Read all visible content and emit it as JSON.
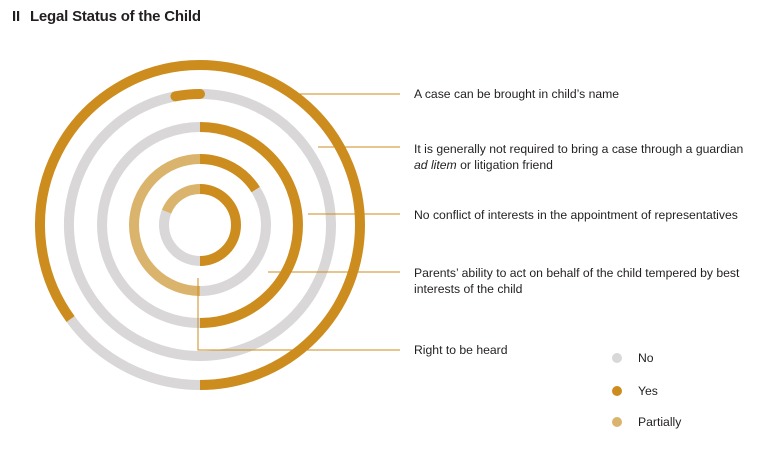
{
  "header": {
    "section_number": "II",
    "title": "Legal Status of the Child"
  },
  "colors": {
    "no": "#d9d7d8",
    "yes": "#cc8d1e",
    "partially": "#dab46c",
    "leader": "#cc8d1e"
  },
  "chart_data": {
    "type": "radial_bar",
    "title": "Legal Status of the Child",
    "legend": {
      "placement": "bottom-right",
      "entries": [
        "No",
        "Yes",
        "Partially"
      ]
    },
    "categories": [
      "A case can be brought in child's name",
      "It is generally not required to bring a case through a guardian ad litem or litigation friend",
      "No conflict of interests in the appointment of representatives",
      "Parents' ability to act on behalf of the child tempered by best interests of the child",
      "Right to be heard"
    ],
    "rings": [
      {
        "label": "A case can be brought in child's name",
        "segments": [
          {
            "status": "Yes",
            "share": 0.5
          },
          {
            "status": "No",
            "share": 0.15
          },
          {
            "status": "Yes",
            "share": 0.35
          }
        ]
      },
      {
        "label_parts": [
          "It is generally not required to bring a case through a guardian ",
          "ad litem",
          " or litigation friend"
        ],
        "segments": [
          {
            "status": "No",
            "share": 0.97
          },
          {
            "status": "Yes",
            "share": 0.03
          }
        ]
      },
      {
        "label": "No conflict of interests in the appointment of representatives",
        "segments": [
          {
            "status": "Yes",
            "share": 0.5
          },
          {
            "status": "No",
            "share": 0.5
          }
        ]
      },
      {
        "label": "Parents' ability to act on behalf of the child tempered by best interests of the child",
        "segments": [
          {
            "status": "Yes",
            "share": 0.16
          },
          {
            "status": "No",
            "share": 0.34
          },
          {
            "status": "Partially",
            "share": 0.5
          }
        ]
      },
      {
        "label": "Right to be heard",
        "segments": [
          {
            "status": "Yes",
            "share": 0.5
          },
          {
            "status": "No",
            "share": 0.31
          },
          {
            "status": "Partially",
            "share": 0.19
          }
        ]
      }
    ]
  },
  "labels": {
    "ring1": "A case can be brought in child’s name",
    "ring2_a": "It is generally not required to bring a case through a guardian ",
    "ring2_b": "ad litem",
    "ring2_c": " or litigation friend",
    "ring3": "No conflict of interests in the appointment of representatives",
    "ring4": "Parents’ ability to act on behalf of the child tempered by best interests of the child",
    "ring5": "Right to be heard"
  },
  "legend": {
    "no": "No",
    "yes": "Yes",
    "partially": "Partially"
  }
}
